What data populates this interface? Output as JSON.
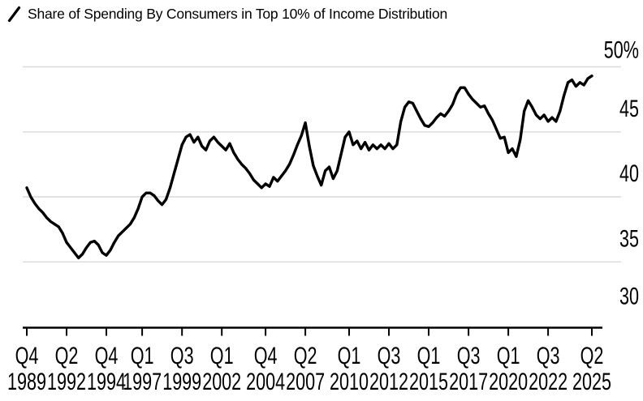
{
  "title": {
    "text": "Share of Spending By Consumers in Top 10% of Income Distribution"
  },
  "legend": {
    "key_icon": "slash-line-key",
    "series_name": "Share of Spending By Consumers in Top 10% of Income Distribution"
  },
  "colors": {
    "background": "#ffffff",
    "line": "#000000",
    "grid": "#d9d9d9",
    "axis": "#000000",
    "text": "#000000"
  },
  "chart_data": {
    "type": "line",
    "title": "Share of Spending By Consumers in Top 10% of Income Distribution",
    "unit": "%",
    "frequency": "quarterly",
    "start_period": "1989 Q4",
    "end_period": "2025 Q2",
    "ylim": [
      30,
      50
    ],
    "grid": "horizontal-only",
    "legend_position": "top-left",
    "y_ticks": [
      {
        "value": 50,
        "label": "50%"
      },
      {
        "value": 45,
        "label": "45"
      },
      {
        "value": 40,
        "label": "40"
      },
      {
        "value": 35,
        "label": "35"
      },
      {
        "value": 30,
        "label": "30"
      }
    ],
    "x_ticks": [
      {
        "q": 0,
        "quarter": "Q4",
        "year": "1989"
      },
      {
        "q": 10,
        "quarter": "Q2",
        "year": "1992"
      },
      {
        "q": 20,
        "quarter": "Q4",
        "year": "1994"
      },
      {
        "q": 29,
        "quarter": "Q1",
        "year": "1997"
      },
      {
        "q": 39,
        "quarter": "Q3",
        "year": "1999"
      },
      {
        "q": 49,
        "quarter": "Q1",
        "year": "2002"
      },
      {
        "q": 60,
        "quarter": "Q4",
        "year": "2004"
      },
      {
        "q": 70,
        "quarter": "Q2",
        "year": "2007"
      },
      {
        "q": 81,
        "quarter": "Q1",
        "year": "2010"
      },
      {
        "q": 91,
        "quarter": "Q3",
        "year": "2012"
      },
      {
        "q": 101,
        "quarter": "Q1",
        "year": "2015"
      },
      {
        "q": 111,
        "quarter": "Q3",
        "year": "2017"
      },
      {
        "q": 121,
        "quarter": "Q1",
        "year": "2020"
      },
      {
        "q": 131,
        "quarter": "Q3",
        "year": "2022"
      },
      {
        "q": 142,
        "quarter": "Q2",
        "year": "2025"
      }
    ],
    "periods": [
      "1989 Q4",
      "1990 Q1",
      "1990 Q2",
      "1990 Q3",
      "1990 Q4",
      "1991 Q1",
      "1991 Q2",
      "1991 Q3",
      "1991 Q4",
      "1992 Q1",
      "1992 Q2",
      "1992 Q3",
      "1992 Q4",
      "1993 Q1",
      "1993 Q2",
      "1993 Q3",
      "1993 Q4",
      "1994 Q1",
      "1994 Q2",
      "1994 Q3",
      "1994 Q4",
      "1995 Q1",
      "1995 Q2",
      "1995 Q3",
      "1995 Q4",
      "1996 Q1",
      "1996 Q2",
      "1996 Q3",
      "1996 Q4",
      "1997 Q1",
      "1997 Q2",
      "1997 Q3",
      "1997 Q4",
      "1998 Q1",
      "1998 Q2",
      "1998 Q3",
      "1998 Q4",
      "1999 Q1",
      "1999 Q2",
      "1999 Q3",
      "1999 Q4",
      "2000 Q1",
      "2000 Q2",
      "2000 Q3",
      "2000 Q4",
      "2001 Q1",
      "2001 Q2",
      "2001 Q3",
      "2001 Q4",
      "2002 Q1",
      "2002 Q2",
      "2002 Q3",
      "2002 Q4",
      "2003 Q1",
      "2003 Q2",
      "2003 Q3",
      "2003 Q4",
      "2004 Q1",
      "2004 Q2",
      "2004 Q3",
      "2004 Q4",
      "2005 Q1",
      "2005 Q2",
      "2005 Q3",
      "2005 Q4",
      "2006 Q1",
      "2006 Q2",
      "2006 Q3",
      "2006 Q4",
      "2007 Q1",
      "2007 Q2",
      "2007 Q3",
      "2007 Q4",
      "2008 Q1",
      "2008 Q2",
      "2008 Q3",
      "2008 Q4",
      "2009 Q1",
      "2009 Q2",
      "2009 Q3",
      "2009 Q4",
      "2010 Q1",
      "2010 Q2",
      "2010 Q3",
      "2010 Q4",
      "2011 Q1",
      "2011 Q2",
      "2011 Q3",
      "2011 Q4",
      "2012 Q1",
      "2012 Q2",
      "2012 Q3",
      "2012 Q4",
      "2013 Q1",
      "2013 Q2",
      "2013 Q3",
      "2013 Q4",
      "2014 Q1",
      "2014 Q2",
      "2014 Q3",
      "2014 Q4",
      "2015 Q1",
      "2015 Q2",
      "2015 Q3",
      "2015 Q4",
      "2016 Q1",
      "2016 Q2",
      "2016 Q3",
      "2016 Q4",
      "2017 Q1",
      "2017 Q2",
      "2017 Q3",
      "2017 Q4",
      "2018 Q1",
      "2018 Q2",
      "2018 Q3",
      "2018 Q4",
      "2019 Q1",
      "2019 Q2",
      "2019 Q3",
      "2019 Q4",
      "2020 Q1",
      "2020 Q2",
      "2020 Q3",
      "2020 Q4",
      "2021 Q1",
      "2021 Q2",
      "2021 Q3",
      "2021 Q4",
      "2022 Q1",
      "2022 Q2",
      "2022 Q3",
      "2022 Q4",
      "2023 Q1",
      "2023 Q2",
      "2023 Q3",
      "2023 Q4",
      "2024 Q1",
      "2024 Q2",
      "2024 Q3",
      "2024 Q4",
      "2025 Q1",
      "2025 Q2"
    ],
    "series": [
      {
        "name": "Share of Spending By Consumers in Top 10% of Income Distribution",
        "color": "#000000",
        "values": [
          40.7,
          40.0,
          39.5,
          39.1,
          38.8,
          38.4,
          38.1,
          37.9,
          37.7,
          37.2,
          36.5,
          36.1,
          35.7,
          35.3,
          35.6,
          36.1,
          36.5,
          36.6,
          36.3,
          35.7,
          35.5,
          35.9,
          36.5,
          37.0,
          37.3,
          37.6,
          37.9,
          38.4,
          39.1,
          40.0,
          40.3,
          40.3,
          40.1,
          39.7,
          39.4,
          39.8,
          40.7,
          41.8,
          42.9,
          44.0,
          44.6,
          44.8,
          44.2,
          44.6,
          43.9,
          43.6,
          44.3,
          44.6,
          44.2,
          43.9,
          43.6,
          44.1,
          43.4,
          42.9,
          42.5,
          42.2,
          41.8,
          41.3,
          41.0,
          40.7,
          41.0,
          40.8,
          41.5,
          41.2,
          41.6,
          42.0,
          42.5,
          43.2,
          44.0,
          44.7,
          45.7,
          43.9,
          42.4,
          41.6,
          40.9,
          42.0,
          42.3,
          41.4,
          42.0,
          43.3,
          44.6,
          45.0,
          44.0,
          44.3,
          43.7,
          44.2,
          43.6,
          44.0,
          43.7,
          44.0,
          43.7,
          44.1,
          43.7,
          44.0,
          45.8,
          46.9,
          47.3,
          47.2,
          46.6,
          46.0,
          45.5,
          45.4,
          45.7,
          46.1,
          46.4,
          46.2,
          46.6,
          47.1,
          47.9,
          48.4,
          48.4,
          47.9,
          47.5,
          47.2,
          46.9,
          47.0,
          46.4,
          45.9,
          45.2,
          44.5,
          44.6,
          43.4,
          43.7,
          43.1,
          44.4,
          46.6,
          47.4,
          46.9,
          46.3,
          46.0,
          46.3,
          45.8,
          46.1,
          45.8,
          46.6,
          47.8,
          48.8,
          49.0,
          48.5,
          48.8,
          48.6,
          49.1,
          49.3
        ]
      }
    ]
  }
}
